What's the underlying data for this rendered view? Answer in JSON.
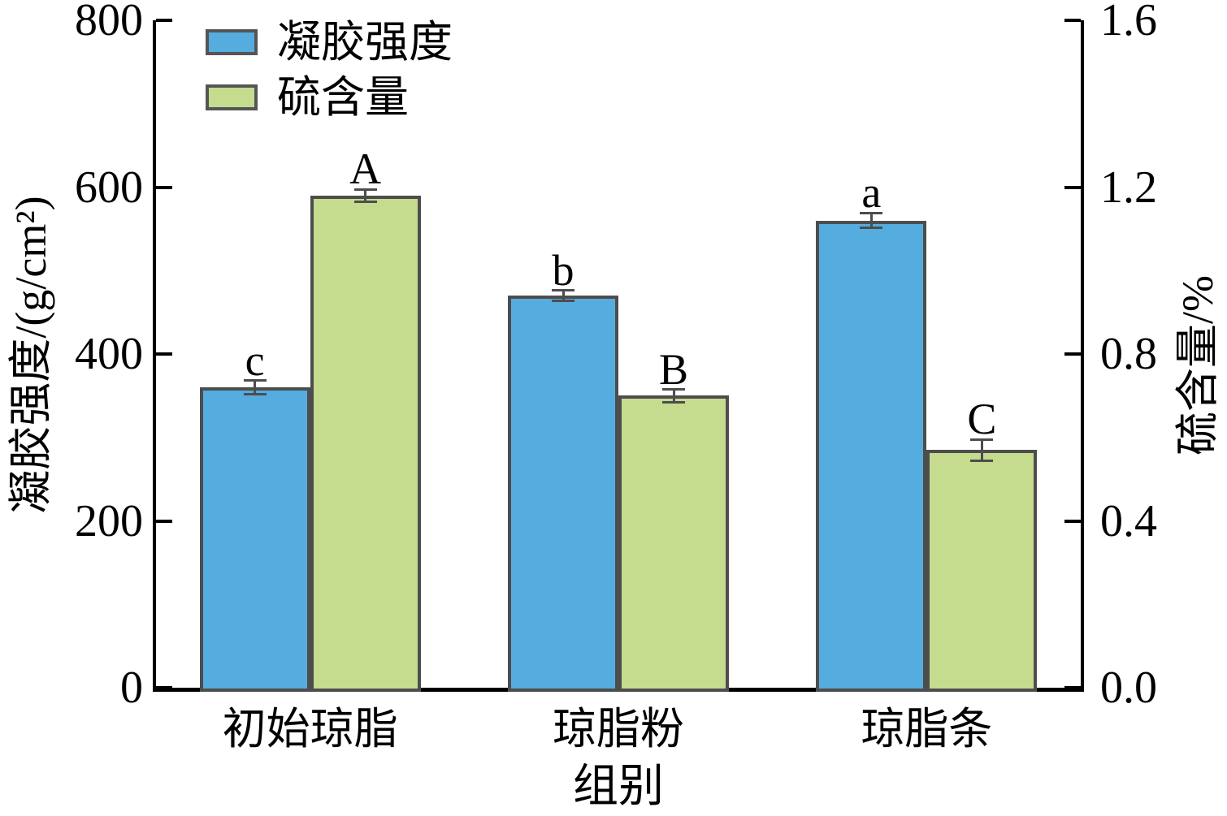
{
  "chart_data": {
    "type": "bar",
    "title": "",
    "xlabel": "组别",
    "ylabel_left": "凝胶强度/(g/cm²)",
    "ylabel_right": "硫含量/%",
    "categories": [
      "初始琼脂",
      "琼脂粉",
      "琼脂条"
    ],
    "series": [
      {
        "name": "凝胶强度",
        "axis": "left",
        "color": "#55ACDF",
        "values": [
          360,
          470,
          560
        ],
        "errors": [
          8,
          6,
          9
        ],
        "sig_labels": [
          "c",
          "b",
          "a"
        ]
      },
      {
        "name": "硫含量",
        "axis": "right",
        "color": "#C5DC8E",
        "values": [
          1.18,
          0.7,
          0.57
        ],
        "errors": [
          0.015,
          0.015,
          0.025
        ],
        "sig_labels": [
          "A",
          "B",
          "C"
        ]
      }
    ],
    "left_axis": {
      "min": 0,
      "max": 800,
      "tick_values": [
        0,
        200,
        400,
        600,
        800
      ],
      "tick_labels": [
        "0",
        "200",
        "400",
        "600",
        "800"
      ]
    },
    "right_axis": {
      "min": 0,
      "max": 1.6,
      "tick_values": [
        0,
        0.4,
        0.8,
        1.2,
        1.6
      ],
      "tick_labels": [
        "0.0",
        "0.4",
        "0.8",
        "1.2",
        "1.6"
      ]
    },
    "legend": {
      "position": "top-left",
      "items": [
        {
          "label": "凝胶强度",
          "color": "#55ACDF"
        },
        {
          "label": "硫含量",
          "color": "#C5DC8E"
        }
      ]
    },
    "colors": {
      "bar_border": "#4D4D4D",
      "error_bar": "#4D4D4D",
      "axis": "#000000"
    },
    "layout_hints": {
      "grid": "off",
      "legend_location": "upper-left-inside"
    }
  }
}
